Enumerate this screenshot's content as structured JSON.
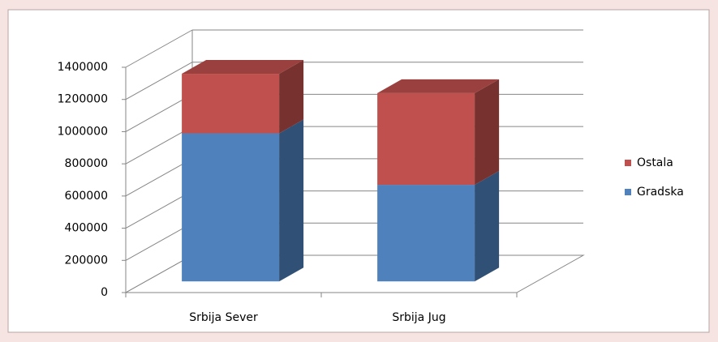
{
  "chart_data": {
    "type": "bar3d_stacked",
    "categories": [
      "Srbija Sever",
      "Srbija Jug"
    ],
    "series": [
      {
        "name": "Gradska",
        "color": "#4f81bd",
        "values": [
          920000,
          600000
        ]
      },
      {
        "name": "Ostala",
        "color": "#c0504d",
        "values": [
          370000,
          570000
        ]
      }
    ],
    "ylim": [
      0,
      1400000
    ],
    "yticks": [
      0,
      200000,
      400000,
      600000,
      800000,
      1000000,
      1200000,
      1400000
    ],
    "grid": true,
    "legend": "right"
  }
}
